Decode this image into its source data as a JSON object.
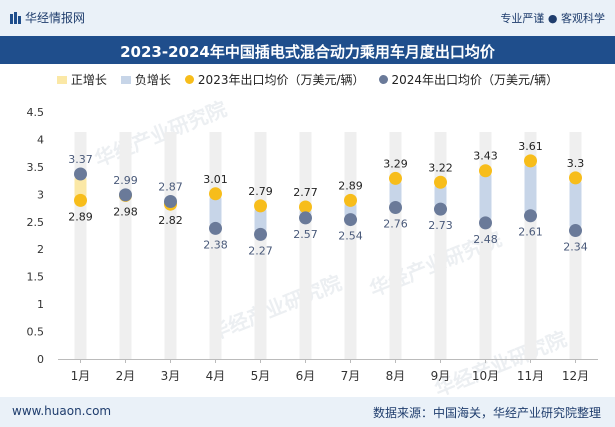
{
  "header": {
    "brand": "华经情报网",
    "tagline": "专业严谨 ● 客观科学"
  },
  "title": "2023-2024年中国插电式混合动力乘用车月度出口均价",
  "legend": {
    "positive": "正增长",
    "negative": "负增长",
    "series2023": "2023年出口均价（万美元/辆）",
    "series2024": "2024年出口均价（万美元/辆）"
  },
  "watermark": "华经产业研究院",
  "footer": {
    "website": "www.huaon.com",
    "source": "数据来源：中国海关，华经产业研究院整理"
  },
  "colors": {
    "series2023": "#f7bd1b",
    "series2024": "#6a7a99",
    "positive": "#fbe8a6",
    "negative": "#c7d5e8",
    "background_bar": "#efefef"
  },
  "chart_data": {
    "type": "dot-range",
    "title": "2023-2024年中国插电式混合动力乘用车月度出口均价",
    "categories": [
      "1月",
      "2月",
      "3月",
      "4月",
      "5月",
      "6月",
      "7月",
      "8月",
      "9月",
      "10月",
      "11月",
      "12月"
    ],
    "series": [
      {
        "name": "2023年出口均价（万美元/辆）",
        "values": [
          2.89,
          2.98,
          2.82,
          3.01,
          2.79,
          2.77,
          2.89,
          3.29,
          3.22,
          3.43,
          3.61,
          3.3
        ]
      },
      {
        "name": "2024年出口均价（万美元/辆）",
        "values": [
          3.37,
          2.99,
          2.87,
          2.38,
          2.27,
          2.57,
          2.54,
          2.76,
          2.73,
          2.48,
          2.61,
          2.34
        ]
      }
    ],
    "y_ticks": [
      "0",
      "0.5",
      "1",
      "1.5",
      "2",
      "2.5",
      "3",
      "3.5",
      "4",
      "4.5"
    ],
    "ylim": [
      0,
      4.5
    ],
    "xlabel": "",
    "ylabel": ""
  }
}
